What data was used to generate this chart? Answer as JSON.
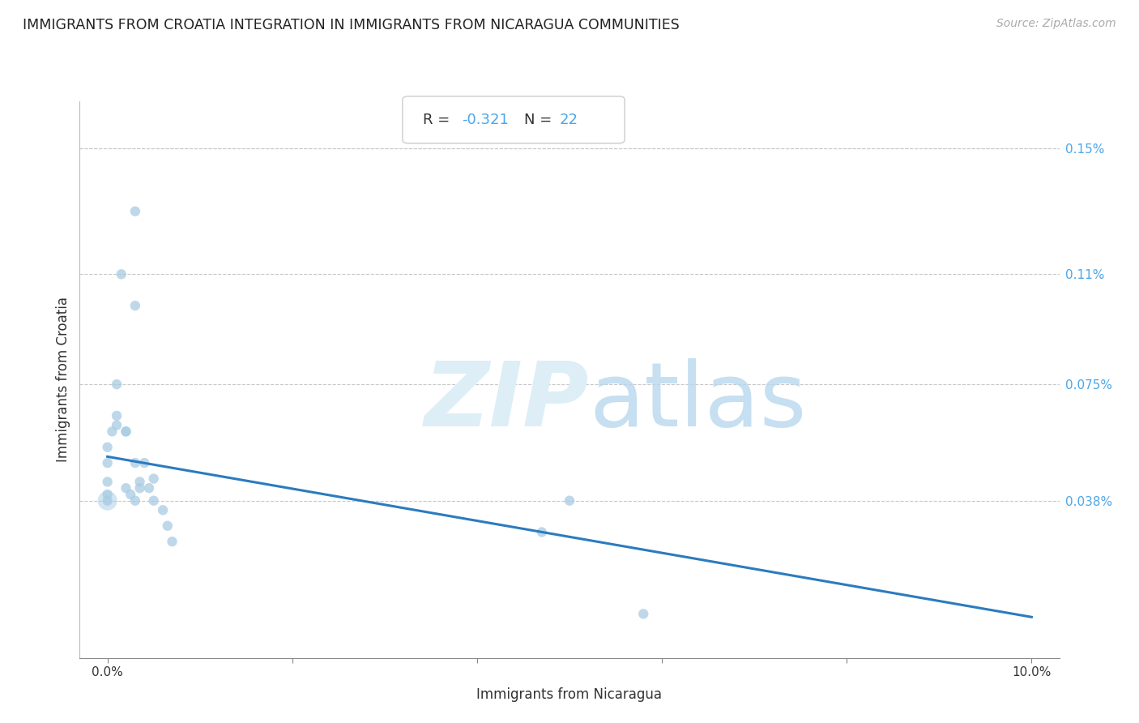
{
  "title": "IMMIGRANTS FROM CROATIA INTEGRATION IN IMMIGRANTS FROM NICARAGUA COMMUNITIES",
  "source": "Source: ZipAtlas.com",
  "xlabel": "Immigrants from Nicaragua",
  "ylabel": "Immigrants from Croatia",
  "R_val": "-0.321",
  "N_val": "22",
  "scatter_color": "#a8cce4",
  "scatter_alpha": 0.75,
  "scatter_size": 80,
  "line_color": "#2b7bbf",
  "line_width": 2.2,
  "background_color": "#ffffff",
  "grid_color": "#c8c8c8",
  "title_fontsize": 12.5,
  "axis_label_fontsize": 12,
  "points_x": [
    0.0,
    0.0,
    0.0,
    0.0,
    0.001,
    0.0015,
    0.002,
    0.002,
    0.0025,
    0.003,
    0.003,
    0.003,
    0.004,
    0.0045,
    0.005,
    0.005,
    0.006,
    0.0065,
    0.007,
    0.05,
    0.058,
    0.047
  ],
  "points_y": [
    0.00038,
    0.0004,
    0.00044,
    0.0005,
    0.00075,
    0.0011,
    0.0006,
    0.00042,
    0.0004,
    0.0013,
    0.001,
    0.00038,
    0.0005,
    0.00042,
    0.00045,
    0.00038,
    0.00035,
    0.0003,
    0.00025,
    0.00038,
    2e-05,
    0.00028
  ],
  "extra_cluster_x": [
    0.0,
    0.0005,
    0.001,
    0.001,
    0.002,
    0.003,
    0.0035,
    0.0035
  ],
  "extra_cluster_y": [
    0.00055,
    0.0006,
    0.00062,
    0.00065,
    0.0006,
    0.0005,
    0.00044,
    0.00042
  ],
  "regression_x0": 0.0,
  "regression_x1": 0.1,
  "regression_y0": 0.00052,
  "regression_y1": 1e-05,
  "ylim_min": -0.00012,
  "ylim_max": 0.00165,
  "xlim_min": -0.003,
  "xlim_max": 0.103,
  "right_yticks": [
    0.00038,
    0.00075,
    0.0011,
    0.0015
  ],
  "right_yticklabels": [
    "0.038%",
    "0.075%",
    "0.11%",
    "0.15%"
  ],
  "xtick_positions": [
    0.0,
    0.02,
    0.04,
    0.06,
    0.08,
    0.1
  ],
  "xtick_labels": [
    "0.0%",
    "",
    "",
    "",
    "",
    "10.0%"
  ]
}
